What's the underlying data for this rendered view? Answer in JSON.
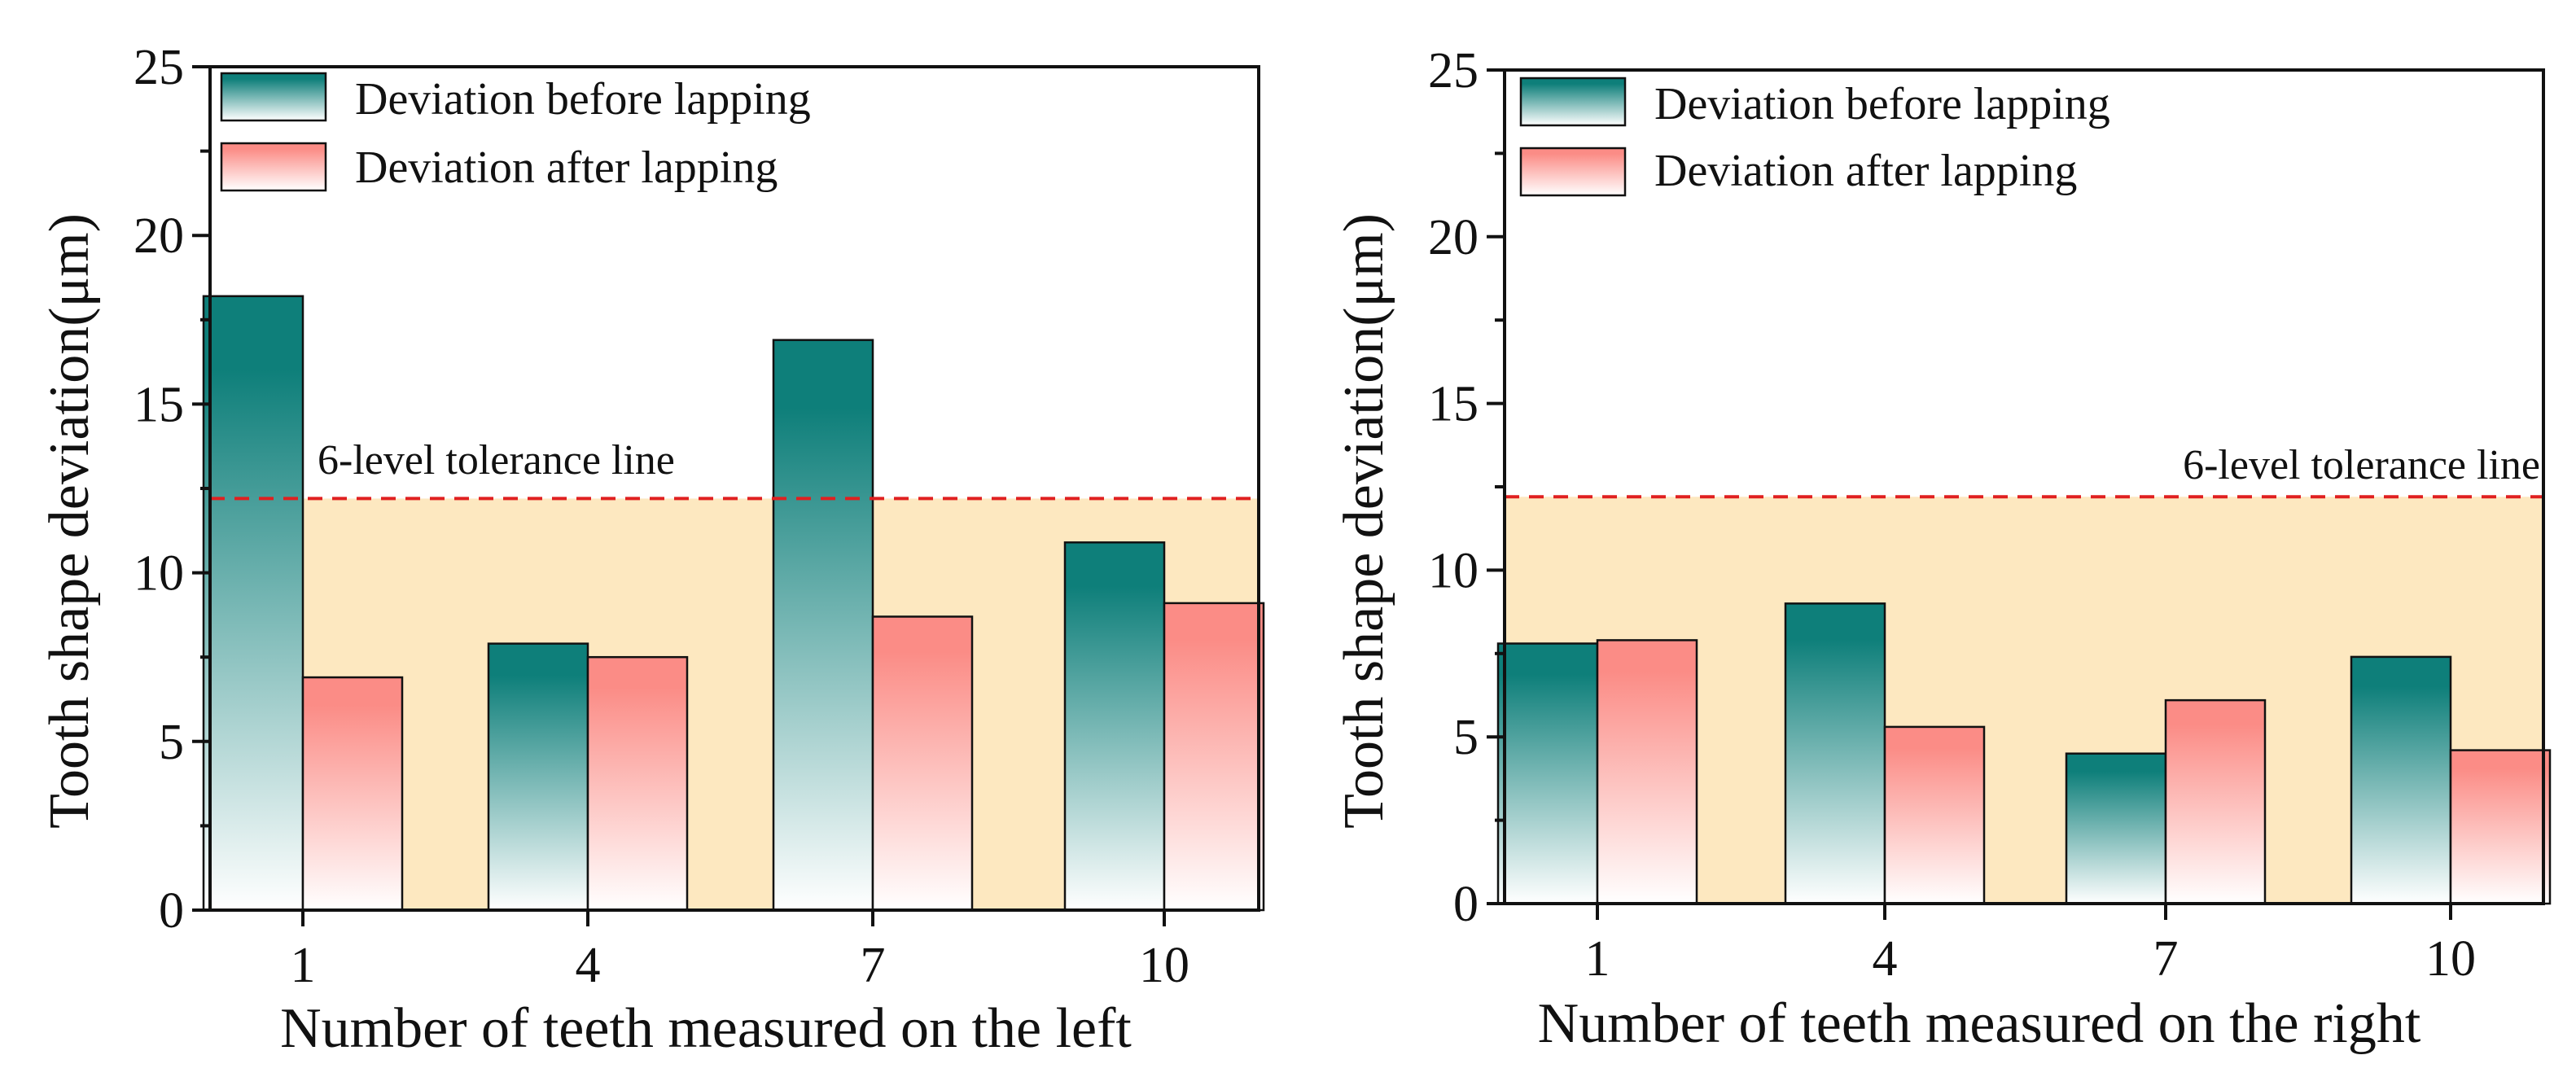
{
  "chart_data": [
    {
      "type": "bar",
      "categories": [
        "1",
        "4",
        "7",
        "10"
      ],
      "series": [
        {
          "name": "Deviation before lapping",
          "values": [
            18.2,
            7.9,
            16.9,
            10.9
          ]
        },
        {
          "name": "Deviation after lapping",
          "values": [
            6.9,
            7.5,
            8.7,
            9.1
          ]
        }
      ],
      "xlabel": "Number of teeth measured on the left",
      "ylabel": "Tooth shape deviation(μm)",
      "ylim": [
        0,
        25
      ],
      "yticks": [
        "0",
        "5",
        "10",
        "15",
        "20",
        "25"
      ],
      "tolerance": {
        "value": 12.2,
        "label": "6-level tolerance line"
      },
      "legend_position": "top-left"
    },
    {
      "type": "bar",
      "categories": [
        "1",
        "4",
        "7",
        "10"
      ],
      "series": [
        {
          "name": "Deviation before lapping",
          "values": [
            7.8,
            9.0,
            4.5,
            7.4
          ]
        },
        {
          "name": "Deviation after lapping",
          "values": [
            7.9,
            5.3,
            6.1,
            4.6
          ]
        }
      ],
      "xlabel": "Number of teeth measured on the right",
      "ylabel": "Tooth shape deviation(μm)",
      "ylim": [
        0,
        25
      ],
      "yticks": [
        "0",
        "5",
        "10",
        "15",
        "20",
        "25"
      ],
      "tolerance": {
        "value": 12.2,
        "label": "6-level tolerance line"
      },
      "legend_position": "top-left"
    }
  ],
  "colors": {
    "before": "#0e7f7a",
    "after": "#fb8c86",
    "tolerance_zone": "#fde8c0",
    "tolerance_line": "#e02020"
  }
}
